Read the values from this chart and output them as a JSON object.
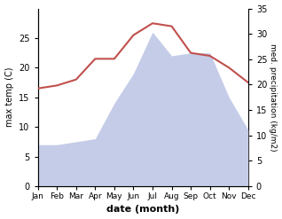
{
  "months": [
    "Jan",
    "Feb",
    "Mar",
    "Apr",
    "May",
    "Jun",
    "Jul",
    "Aug",
    "Sep",
    "Oct",
    "Nov",
    "Dec"
  ],
  "month_x": [
    0,
    1,
    2,
    3,
    4,
    5,
    6,
    7,
    8,
    9,
    10,
    11
  ],
  "temp": [
    16.5,
    17.0,
    18.0,
    21.5,
    21.5,
    25.5,
    27.5,
    27.0,
    22.5,
    22.0,
    20.0,
    17.5
  ],
  "temp_color": "#c0504d",
  "precip_fill_color": "#c5cce8",
  "ylabel_left": "max temp (C)",
  "ylabel_right": "med. precipitation (kg/m2)",
  "xlabel": "date (month)",
  "ylim_left": [
    0,
    30
  ],
  "ylim_right": [
    0,
    35
  ],
  "yticks_left": [
    0,
    5,
    10,
    15,
    20,
    25
  ],
  "yticks_right": [
    0,
    5,
    10,
    15,
    20,
    25,
    30,
    35
  ],
  "bg_color": "#ffffff",
  "precip_raw": [
    7.0,
    7.0,
    7.5,
    8.0,
    14.0,
    19.0,
    26.0,
    22.0,
    22.5,
    22.5,
    15.0,
    9.5
  ]
}
